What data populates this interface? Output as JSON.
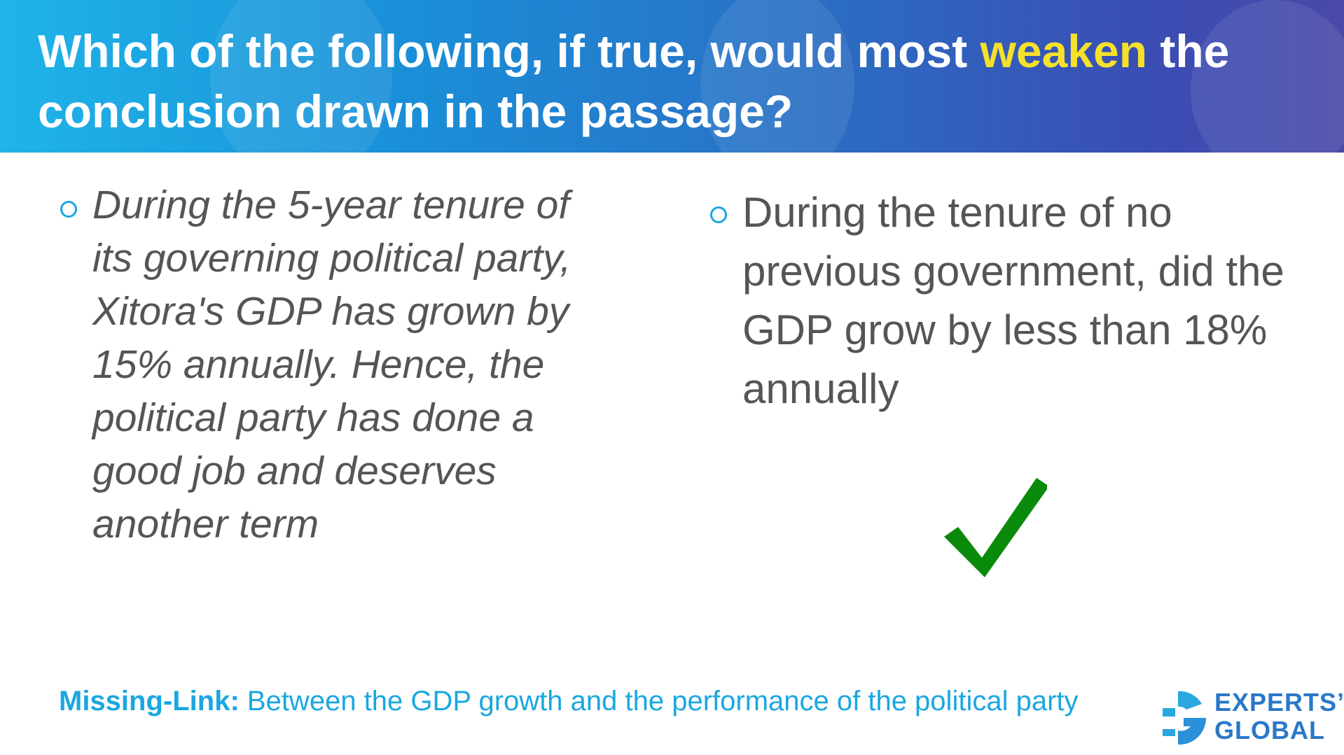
{
  "question": {
    "text_before": "Which of the following, if true, would most ",
    "highlight": "weaken",
    "text_after": " the conclusion drawn in the passage?",
    "highlight_color": "#f5e12a"
  },
  "options": [
    {
      "text": "During the 5-year tenure of its governing political party, Xitora's GDP has grown by 15% annually. Hence, the political party has done a good job and deserves another term",
      "style": "italic"
    },
    {
      "text": "During the tenure of no previous government, did the GDP grow by less than 18% annually",
      "marked_correct": true
    }
  ],
  "check_icon": {
    "name": "checkmark-icon",
    "color": "#0a8a0a"
  },
  "footer": {
    "label": "Missing-Link:",
    "text": " Between the GDP growth and the performance of the political party"
  },
  "logo": {
    "line1": "EXPERTS’",
    "line2": "GLOBAL"
  }
}
